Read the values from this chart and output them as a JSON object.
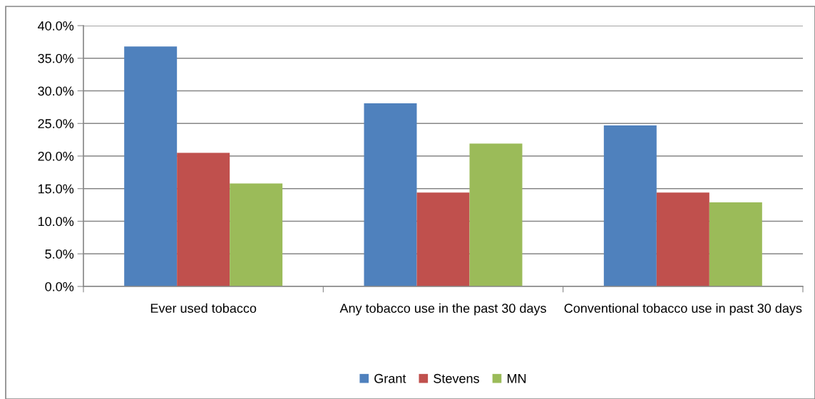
{
  "chart_data": {
    "type": "bar",
    "categories": [
      "Ever used tobacco",
      "Any tobacco use in the past 30 days",
      "Conventional tobacco use in past 30 days"
    ],
    "series": [
      {
        "name": "Grant",
        "color": "#4f81bd",
        "values": [
          36.8,
          28.1,
          24.7
        ]
      },
      {
        "name": "Stevens",
        "color": "#c0504d",
        "values": [
          20.5,
          14.4,
          14.4
        ]
      },
      {
        "name": "MN",
        "color": "#9bbb59",
        "values": [
          15.8,
          21.9,
          12.9
        ]
      }
    ],
    "ylim": [
      0,
      40
    ],
    "yticks": [
      {
        "value": 0,
        "label": "0.0%"
      },
      {
        "value": 5,
        "label": "5.0%"
      },
      {
        "value": 10,
        "label": "10.0%"
      },
      {
        "value": 15,
        "label": "15.0%"
      },
      {
        "value": 20,
        "label": "20.0%"
      },
      {
        "value": 25,
        "label": "25.0%"
      },
      {
        "value": 30,
        "label": "30.0%"
      },
      {
        "value": 35,
        "label": "35.0%"
      },
      {
        "value": 40,
        "label": "40.0%"
      }
    ],
    "grid": "y",
    "legend": "bottom"
  }
}
